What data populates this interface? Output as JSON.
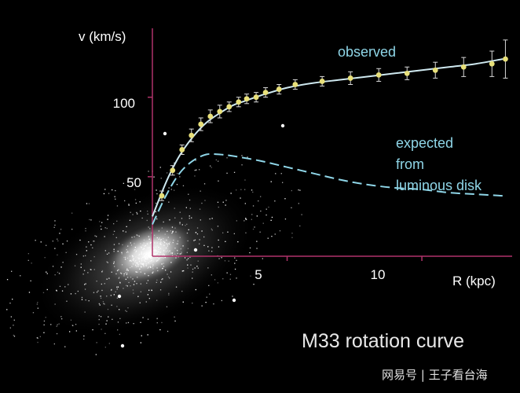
{
  "chart_data": {
    "type": "line",
    "title": "M33 rotation curve",
    "xlabel": "R (kpc)",
    "ylabel": "v (km/s)",
    "xlim": [
      0,
      13
    ],
    "ylim": [
      0,
      130
    ],
    "x_ticks": [
      5,
      10
    ],
    "x_tick_labels": [
      "5",
      "10"
    ],
    "y_ticks": [
      50,
      100
    ],
    "y_tick_labels": [
      "50",
      "100"
    ],
    "grid": false,
    "series": [
      {
        "name": "observed",
        "style": "points-with-errorbars",
        "color": "#e8e07a",
        "x": [
          0.35,
          0.75,
          1.1,
          1.45,
          1.8,
          2.15,
          2.5,
          2.85,
          3.2,
          3.5,
          3.85,
          4.2,
          4.7,
          5.3,
          6.3,
          7.35,
          8.4,
          9.45,
          10.5,
          11.55,
          12.6,
          13.1
        ],
        "y": [
          38,
          54,
          67,
          76,
          83,
          88,
          91,
          94,
          97,
          99,
          100,
          103,
          105,
          108,
          110,
          112,
          114,
          115,
          117,
          119,
          121,
          124
        ],
        "err": [
          3,
          3,
          3,
          4,
          4,
          4,
          4,
          3,
          3,
          3,
          3,
          3,
          3,
          3,
          3,
          4,
          4,
          4,
          5,
          6,
          8,
          12
        ]
      },
      {
        "name": "observed-fit",
        "style": "solid",
        "color": "#cfe9f0",
        "x": [
          0.0,
          0.3,
          0.6,
          1.0,
          1.5,
          2.0,
          2.5,
          3.0,
          3.5,
          4.0,
          5.0,
          6.0,
          7.0,
          8.0,
          9.0,
          10.0,
          11.0,
          12.0,
          13.0
        ],
        "y": [
          25,
          38,
          50,
          63,
          75,
          84,
          90,
          95,
          98,
          101,
          106,
          109,
          111,
          113,
          115,
          117,
          119,
          121,
          124
        ]
      },
      {
        "name": "luminous-disk",
        "style": "dashed",
        "color": "#8fd6e8",
        "x": [
          0.0,
          0.5,
          1.0,
          1.5,
          2.0,
          2.5,
          3.0,
          4.0,
          5.0,
          6.0,
          7.0,
          8.0,
          9.0,
          10.0,
          11.0,
          12.0,
          13.0
        ],
        "y": [
          20,
          38,
          52,
          60,
          64,
          64,
          63,
          60,
          56,
          52,
          48,
          45,
          43,
          42,
          40,
          39,
          38
        ]
      }
    ],
    "annotations": {
      "observed": "observed",
      "expected": [
        "expected",
        "from",
        "luminous disk"
      ]
    }
  },
  "title": "M33 rotation curve",
  "watermark": "网易号 | 王子看台海",
  "colors": {
    "axis": "#b0336a",
    "points": "#e8e07a",
    "fit": "#cfe9f0",
    "dashed": "#8fd6e8",
    "background": "#000000"
  }
}
